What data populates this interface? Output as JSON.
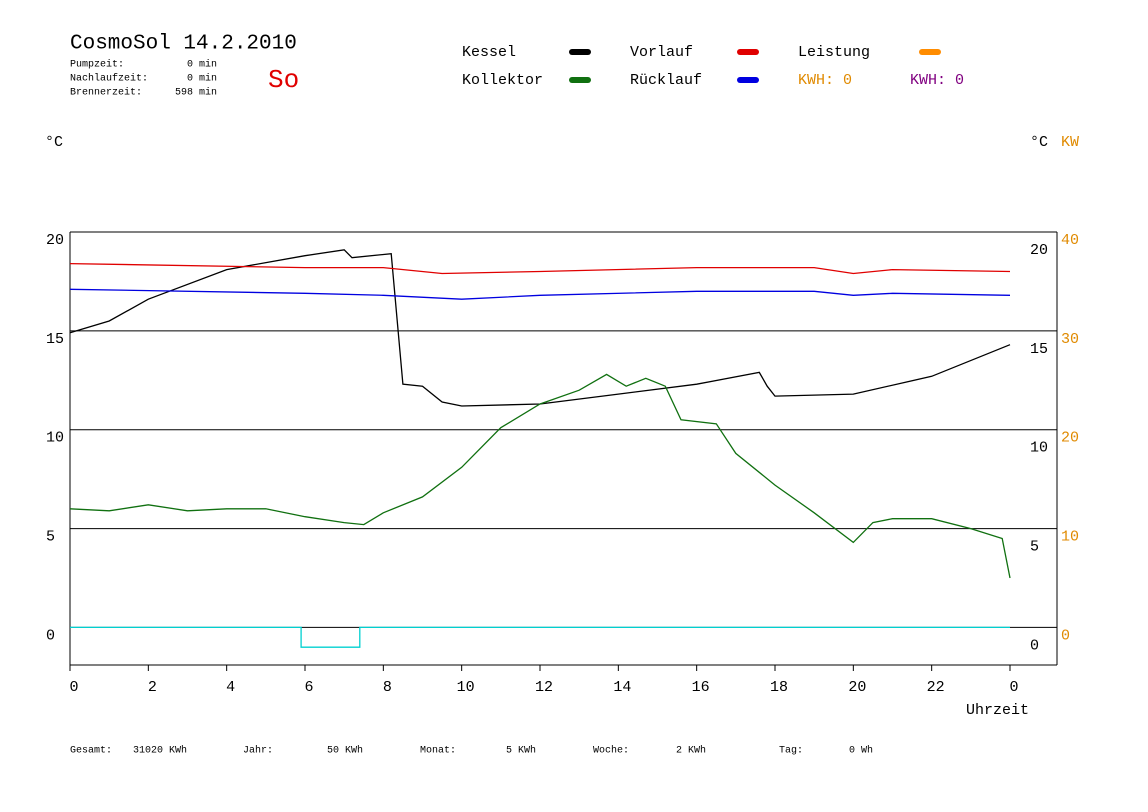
{
  "header": {
    "title": "CosmoSol 14.2.2010",
    "day": "So",
    "stats": [
      {
        "label": "Pumpzeit:",
        "value": "0 min"
      },
      {
        "label": "Nachlaufzeit:",
        "value": "0 min"
      },
      {
        "label": "Brennerzeit:",
        "value": "598 min"
      }
    ],
    "kwh": [
      {
        "label": "KWH: 0",
        "color": "#e08a00"
      },
      {
        "label": "KWH: 0",
        "color": "#800080"
      }
    ]
  },
  "chart_data": {
    "type": "line",
    "xlabel": "Uhrzeit",
    "ylabel": "°C",
    "y2label": "°C",
    "y2unit": "KW",
    "y2color": "#e08a00",
    "xlim": [
      0,
      25.2
    ],
    "xticks": [
      0,
      2,
      4,
      6,
      8,
      10,
      12,
      14,
      16,
      18,
      20,
      22,
      {
        "value": 24,
        "label": "0"
      }
    ],
    "ylim": [
      -1.9,
      20
    ],
    "yticks": [
      0,
      5,
      10,
      15,
      20
    ],
    "y2lim": [
      -3.8,
      40
    ],
    "y2ticks": [
      0,
      10,
      20,
      30,
      40
    ],
    "grid": true,
    "series": [
      {
        "name": "Kessel",
        "color": "#000000",
        "x": [
          0,
          1,
          2,
          4,
          6,
          7,
          7.2,
          8.2,
          8.5,
          9,
          9.5,
          10,
          12,
          14,
          16,
          17.6,
          17.8,
          18,
          20,
          22,
          24
        ],
        "values": [
          14.9,
          15.5,
          16.6,
          18.1,
          18.8,
          19.1,
          18.7,
          18.9,
          12.3,
          12.2,
          11.4,
          11.2,
          11.3,
          11.8,
          12.3,
          12.9,
          12.2,
          11.7,
          11.8,
          12.7,
          14.3
        ]
      },
      {
        "name": "Kollektor",
        "color": "#107010",
        "x": [
          0,
          1,
          2,
          3,
          4,
          5,
          6,
          7,
          7.5,
          8,
          9,
          10,
          11,
          12,
          13,
          13.7,
          14.2,
          14.7,
          15.2,
          15.6,
          16.5,
          17,
          18,
          19,
          20,
          20.5,
          21,
          22,
          23,
          23.8,
          24
        ],
        "values": [
          6.0,
          5.9,
          6.2,
          5.9,
          6.0,
          6.0,
          5.6,
          5.3,
          5.2,
          5.8,
          6.6,
          8.1,
          10.1,
          11.3,
          12.0,
          12.8,
          12.2,
          12.6,
          12.2,
          10.5,
          10.3,
          8.8,
          7.2,
          5.8,
          4.3,
          5.3,
          5.5,
          5.5,
          5.0,
          4.5,
          2.5
        ]
      },
      {
        "name": "Vorlauf",
        "color": "#e00000",
        "x": [
          0,
          6,
          8,
          9.5,
          12,
          16,
          19,
          20,
          21,
          24
        ],
        "values": [
          18.4,
          18.2,
          18.2,
          17.9,
          18.0,
          18.2,
          18.2,
          17.9,
          18.1,
          18.0
        ]
      },
      {
        "name": "Rücklauf",
        "color": "#0000e0",
        "x": [
          0,
          6,
          8,
          10,
          12,
          16,
          19,
          20,
          21,
          24
        ],
        "values": [
          17.1,
          16.9,
          16.8,
          16.6,
          16.8,
          17.0,
          17.0,
          16.8,
          16.9,
          16.8
        ]
      },
      {
        "name": "Leistung",
        "color": "#ff8c00",
        "axis": "y2",
        "x": [],
        "values": []
      },
      {
        "color": "#00d0d0",
        "x": [
          0,
          5.9,
          5.9,
          7.4,
          7.4,
          24
        ],
        "values": [
          0,
          0,
          -1,
          -1,
          0,
          0
        ]
      }
    ]
  },
  "footer": [
    {
      "label": "Gesamt:",
      "value": "31020 KWh"
    },
    {
      "label": "Jahr:",
      "value": "50 KWh"
    },
    {
      "label": "Monat:",
      "value": "5 KWh"
    },
    {
      "label": "Woche:",
      "value": "2 KWh"
    },
    {
      "label": "Tag:",
      "value": "0 Wh"
    }
  ]
}
